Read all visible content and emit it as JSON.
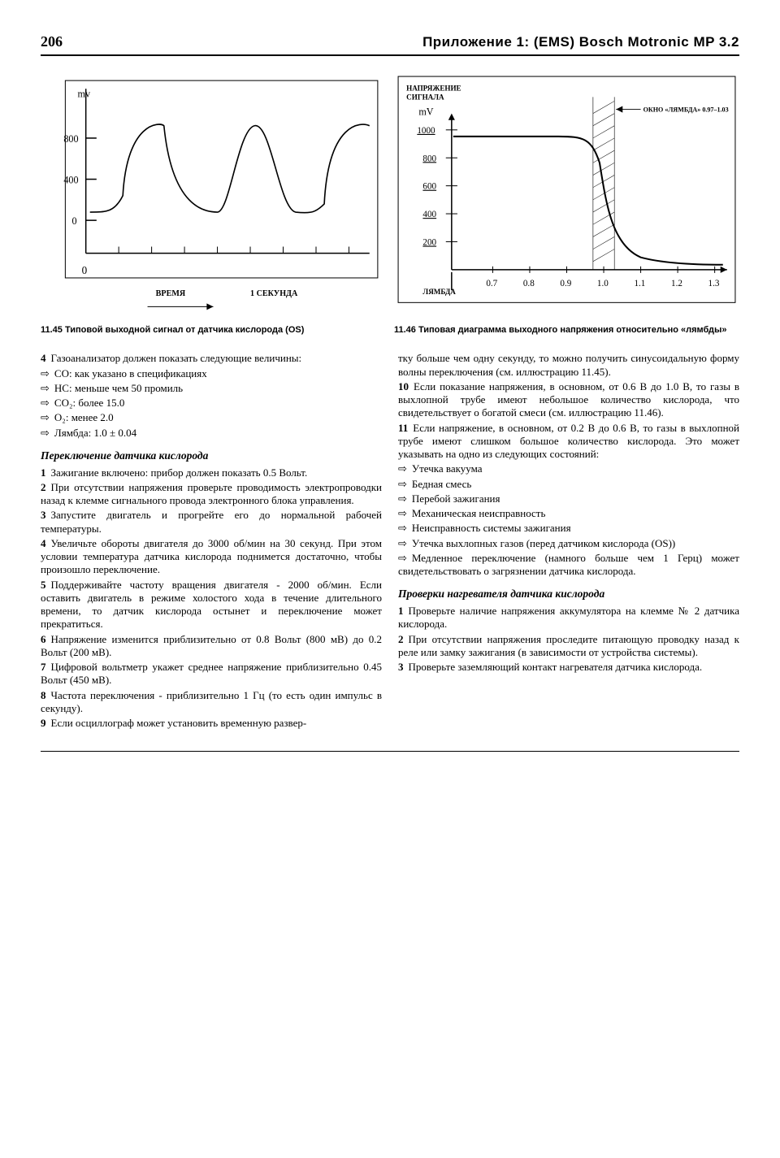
{
  "header": {
    "page_number": "206",
    "title": "Приложение 1: (EMS)  Bosch  Motronic  MP 3.2"
  },
  "figure1": {
    "type": "line-waveform",
    "y_label": "mv",
    "y_ticks": [
      "800",
      "400",
      "0"
    ],
    "x_origin": "0",
    "x_axis_label": "ВРЕМЯ",
    "x_marker": "1 СЕКУНДА",
    "stroke_color": "#000000",
    "bg_color": "#ffffff",
    "caption": "11.45 Типовой выходной сигнал от датчика кислорода (OS)"
  },
  "figure2": {
    "type": "lambda-curve",
    "top_label": "НАПРЯЖЕНИЕ СИГНАЛА",
    "y_label": "mV",
    "y_ticks": [
      "1000",
      "800",
      "600",
      "400",
      "200"
    ],
    "window_label": "ОКНО «ЛЯМБДА» 0.97–1.03",
    "x_label": "ЛЯМБДА",
    "x_ticks": [
      "0.7",
      "0.8",
      "0.9",
      "1.0",
      "1.1",
      "1.2",
      "1.3"
    ],
    "stroke_color": "#000000",
    "bg_color": "#ffffff",
    "caption": "11.46 Типовая диаграмма выходного напряжения относительно «лямбды»"
  },
  "left_col": {
    "para4_lead": "Газоанализатор должен показать следующие величины:",
    "bullets_a": [
      "CO: как указано в спецификациях",
      "HC: меньше чем 50 промиль",
      "CO₂: более 15.0",
      "O₂: менее 2.0",
      "Лямбда: 1.0 ± 0.04"
    ],
    "heading1": "Переключение датчика кислорода",
    "items": [
      {
        "n": "1",
        "text": "Зажигание включено: прибор должен показать 0.5 Вольт."
      },
      {
        "n": "2",
        "text": "При отсутствии напряжения проверьте проводимость электропроводки назад к клемме сигнального провода электронного блока управления."
      },
      {
        "n": "3",
        "text": "Запустите двигатель и прогрейте его до нормальной рабочей температуры."
      },
      {
        "n": "4",
        "text": "Увеличьте обороты двигателя до 3000 об/мин на 30 секунд. При этом условии температура датчика кислорода поднимется достаточно, чтобы произошло переключение."
      },
      {
        "n": "5",
        "text": "Поддерживайте частоту вращения двигателя - 2000 об/мин. Если оставить двигатель в режиме холостого хода в течение длительного времени, то датчик кислорода остынет и переключение может прекратиться."
      },
      {
        "n": "6",
        "text": "Напряжение изменится приблизительно от 0.8 Вольт (800 мВ) до 0.2 Вольт (200 мВ)."
      },
      {
        "n": "7",
        "text": "Цифровой вольтметр укажет среднее напряжение приблизительно 0.45 Вольт (450 мВ)."
      },
      {
        "n": "8",
        "text": "Частота переключения - приблизительно 1 Гц (то есть один импульс в секунду)."
      },
      {
        "n": "9",
        "text": "Если осциллограф может установить временную развер-"
      }
    ]
  },
  "right_col": {
    "continuation": "тку больше чем одну секунду, то можно получить синусоидальную форму волны переключения (см. иллюстрацию 11.45).",
    "items_a": [
      {
        "n": "10",
        "text": "Если показание напряжения, в основном, от 0.6 В до 1.0 В, то газы в выхлопной трубе имеют небольшое количество кислорода, что свидетельствует о богатой смеси (см. иллюстрацию 11.46)."
      },
      {
        "n": "11",
        "text": "Если напряжение, в основном, от 0.2 В до 0.6 В, то газы в выхлопной трубе имеют слишком большое количество кислорода. Это может указывать на одно из следующих состояний:"
      }
    ],
    "bullets_b": [
      "Утечка вакуума",
      "Бедная смесь",
      "Перебой зажигания",
      "Механическая неисправность",
      "Неисправность системы зажигания",
      "Утечка выхлопных газов (перед датчиком кислорода (OS))",
      "Медленное переключение (намного больше чем 1 Герц) может свидетельствовать о загрязнении датчика кислорода."
    ],
    "heading2": "Проверки нагревателя датчика кислорода",
    "items_b": [
      {
        "n": "1",
        "text": "Проверьте наличие напряжения аккумулятора на клемме № 2 датчика кислорода."
      },
      {
        "n": "2",
        "text": "При отсутствии напряжения проследите питающую проводку назад к реле или замку зажигания (в зависимости от устройства системы)."
      },
      {
        "n": "3",
        "text": "Проверьте заземляющий контакт нагревателя датчика кислорода."
      }
    ]
  }
}
